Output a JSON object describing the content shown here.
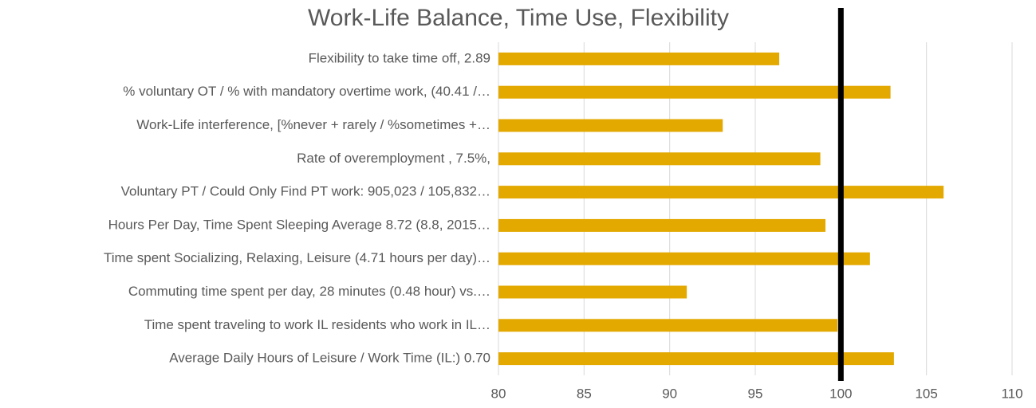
{
  "chart_data": {
    "type": "bar",
    "orientation": "horizontal",
    "title": "Work-Life Balance, Time Use, Flexibility",
    "categories": [
      "Flexibility to take time off, 2.89",
      "% voluntary OT / % with mandatory overtime work, (40.41 /…",
      "Work-Life interference, [%never + rarely / %sometimes +…",
      "Rate of overemployment , 7.5%,",
      "Voluntary PT / Could Only Find PT work:  905,023 / 105,832…",
      "Hours Per Day, Time Spent Sleeping Average 8.72 (8.8, 2015…",
      "Time spent Socializing, Relaxing, Leisure (4.71 hours per day)…",
      "Commuting time spent per day, 28 minutes (0.48 hour) vs.…",
      "Time spent traveling to work  IL residents who work in IL…",
      "Average Daily Hours of Leisure / Work Time (IL:) 0.70"
    ],
    "values": [
      96.4,
      102.9,
      93.1,
      98.8,
      106.0,
      99.1,
      101.7,
      91.0,
      99.8,
      103.1
    ],
    "color": "#e3a900",
    "xlim": [
      80,
      110
    ],
    "xticks": [
      80,
      85,
      90,
      95,
      100,
      105,
      110
    ],
    "grid": true,
    "reference_line": 100,
    "reference_color": "#000000"
  }
}
